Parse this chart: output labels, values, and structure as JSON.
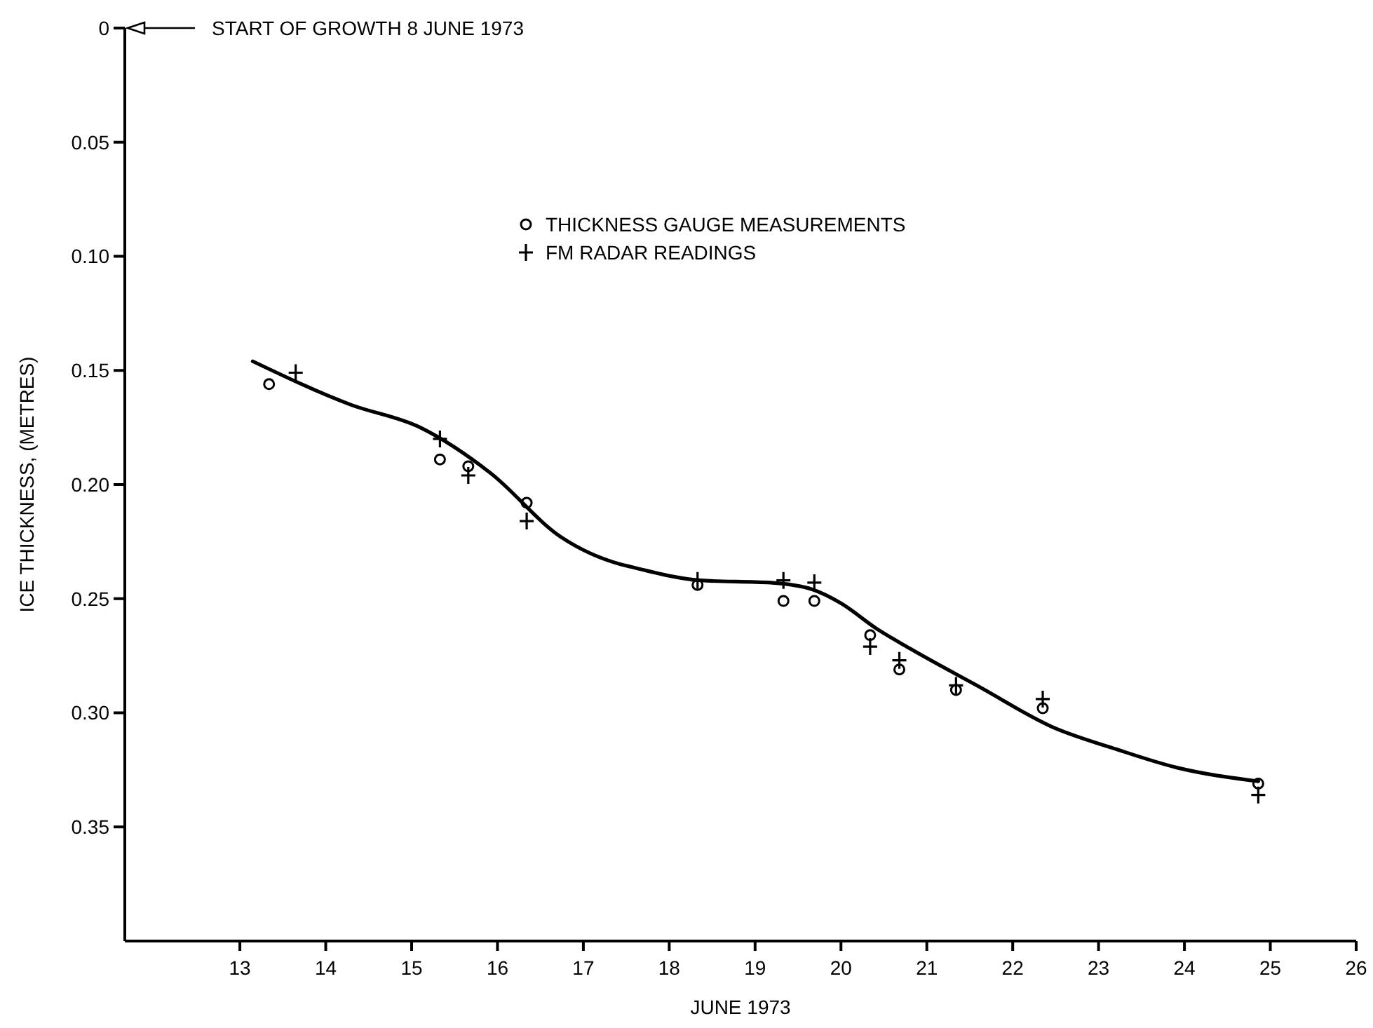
{
  "chart_data": {
    "type": "scatter",
    "xlabel": "JUNE 1973",
    "ylabel": "ICE THICKNESS, (METRES)",
    "annotations": [
      "START OF GROWTH 8 JUNE 1973"
    ],
    "xlim": [
      11.66,
      26
    ],
    "xticks": [
      13,
      14,
      15,
      16,
      17,
      18,
      19,
      20,
      21,
      22,
      23,
      24,
      25,
      26
    ],
    "ylim": [
      0.4,
      0
    ],
    "yticks": [
      {
        "value": 0,
        "label": "0"
      },
      {
        "value": 0.05,
        "label": "0.05"
      },
      {
        "value": 0.1,
        "label": "0.10"
      },
      {
        "value": 0.15,
        "label": "0.15"
      },
      {
        "value": 0.2,
        "label": "0.20"
      },
      {
        "value": 0.25,
        "label": "0.25"
      },
      {
        "value": 0.3,
        "label": "0.30"
      },
      {
        "value": 0.35,
        "label": "0.35"
      }
    ],
    "grid": false,
    "legend": "top",
    "series": [
      {
        "name": "THICKNESS GAUGE MEASUREMENTS",
        "color": "#000000",
        "marker": "circle",
        "x": [
          13.34,
          15.33,
          15.66,
          16.34,
          18.33,
          19.33,
          19.69,
          20.34,
          20.68,
          21.34,
          22.35,
          24.86
        ],
        "values": [
          0.156,
          0.189,
          0.192,
          0.208,
          0.244,
          0.251,
          0.251,
          0.266,
          0.281,
          0.29,
          0.298,
          0.331
        ]
      },
      {
        "name": "FM RADAR READINGS",
        "color": "#000000",
        "marker": "cross",
        "x": [
          13.65,
          15.33,
          15.66,
          16.34,
          18.33,
          19.33,
          19.69,
          20.34,
          20.68,
          21.34,
          22.35,
          24.86
        ],
        "values": [
          0.151,
          0.18,
          0.196,
          0.216,
          0.242,
          0.242,
          0.243,
          0.271,
          0.277,
          0.288,
          0.294,
          0.336
        ]
      },
      {
        "type": "line",
        "color": "#000000",
        "marker": "none",
        "x": [
          13.15,
          14.29,
          15.1,
          15.92,
          16.74,
          17.44,
          17.55,
          18.37,
          19.18,
          19.67,
          20,
          20.41,
          20.81,
          21.63,
          22.45,
          23.21,
          23.91,
          24.86
        ],
        "values": [
          0.146,
          0.165,
          0.175,
          0.195,
          0.223,
          0.235,
          0.236,
          0.242,
          0.243,
          0.246,
          0.252,
          0.263,
          0.272,
          0.289,
          0.306,
          0.316,
          0.324,
          0.33
        ]
      }
    ]
  }
}
